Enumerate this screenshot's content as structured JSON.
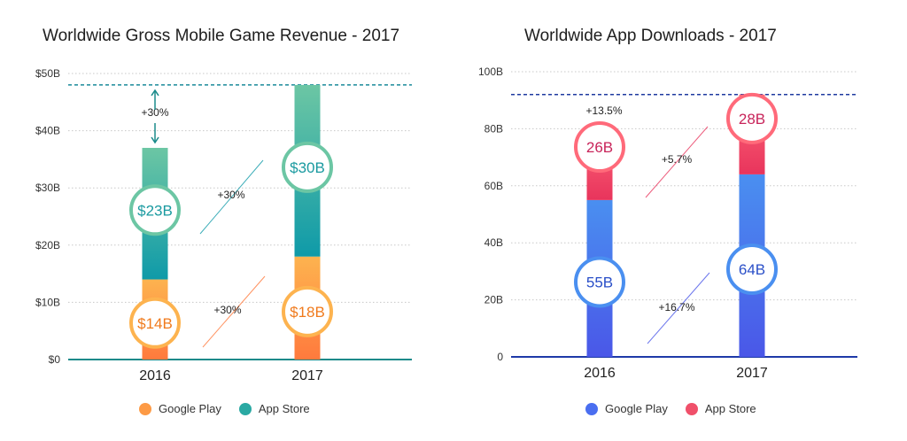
{
  "chart_data": [
    {
      "type": "bar",
      "title": "Worldwide Gross Mobile Game Revenue - 2017",
      "categories": [
        "2016",
        "2017"
      ],
      "series": [
        {
          "name": "Google Play",
          "values": [
            14,
            18
          ],
          "labels": [
            "$14B",
            "$18B"
          ],
          "color_top": "#fdb34f",
          "color_bottom": "#ff7a3d",
          "text_color": "#f07a1c"
        },
        {
          "name": "App Store",
          "values": [
            23,
            30
          ],
          "labels": [
            "$23B",
            "$30B"
          ],
          "color_top": "#6cc6a4",
          "color_bottom": "#0f9aa8",
          "text_color": "#1a9aa0"
        }
      ],
      "yticks": [
        "$0",
        "$10B",
        "$20B",
        "$30B",
        "$40B",
        "$50B"
      ],
      "ylim": [
        0,
        50
      ],
      "dashed_line_value": 48,
      "dash_color": "#1a8a9a",
      "annotations": {
        "gap": "+30%",
        "store": "+30%",
        "play": "+30%"
      },
      "grid": true,
      "legend_position": "bottom"
    },
    {
      "type": "bar",
      "title": "Worldwide App Downloads - 2017",
      "categories": [
        "2016",
        "2017"
      ],
      "series": [
        {
          "name": "Google Play",
          "values": [
            55,
            64
          ],
          "labels": [
            "55B",
            "64B"
          ],
          "color_top": "#4a8ff0",
          "color_bottom": "#4a57e8",
          "text_color": "#2a4fc8"
        },
        {
          "name": "App Store",
          "values": [
            26,
            28
          ],
          "labels": [
            "26B",
            "28B"
          ],
          "color_top": "#ff6a7a",
          "color_bottom": "#e8345c",
          "text_color": "#c8245a"
        }
      ],
      "yticks": [
        "0",
        "20B",
        "40B",
        "60B",
        "80B",
        "100B"
      ],
      "ylim": [
        0,
        100
      ],
      "dashed_line_value": 92,
      "dash_color": "#1e3aa0",
      "annotations": {
        "total": "+13.5%",
        "store": "+5.7%",
        "play": "+16.7%"
      },
      "grid": true,
      "legend_position": "bottom"
    }
  ]
}
